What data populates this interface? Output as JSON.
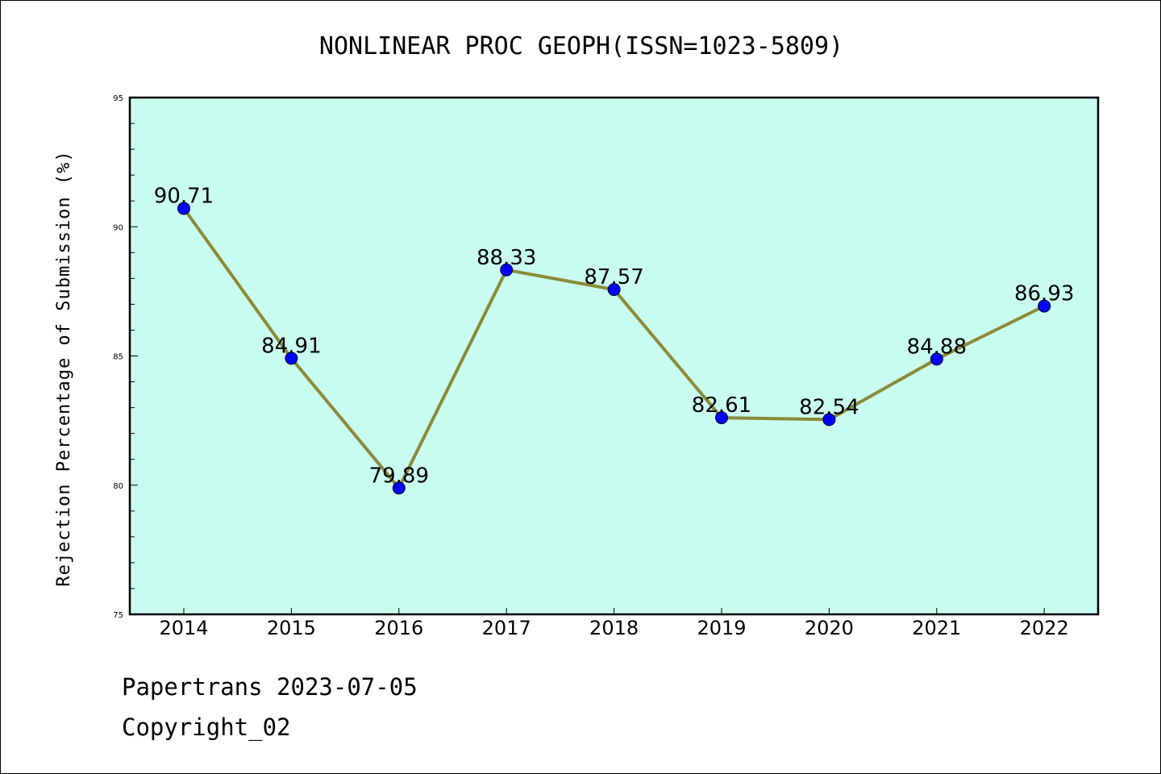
{
  "chart_data": {
    "type": "line",
    "title": "NONLINEAR PROC GEOPH(ISSN=1023-5809)",
    "ylabel": "Rejection Percentage of Submission (%)",
    "xlabel": "",
    "x": [
      "2014",
      "2015",
      "2016",
      "2017",
      "2018",
      "2019",
      "2020",
      "2021",
      "2022"
    ],
    "values": [
      90.71,
      84.91,
      79.89,
      88.33,
      87.57,
      82.61,
      82.54,
      84.88,
      86.93
    ],
    "data_labels": [
      "90.71",
      "84.91",
      "79.89",
      "88.33",
      "87.57",
      "82.61",
      "82.54",
      "84.88",
      "86.93"
    ],
    "ylim": [
      75,
      95
    ],
    "yticks": [
      75,
      80,
      85,
      90,
      95
    ],
    "grid": false,
    "colors": {
      "plot_background": "#c8fcee",
      "line": "#8b8a3a",
      "marker": "#0000ff"
    }
  },
  "footer": {
    "line1": "Papertrans 2023-07-05",
    "line2": "Copyright_02"
  }
}
